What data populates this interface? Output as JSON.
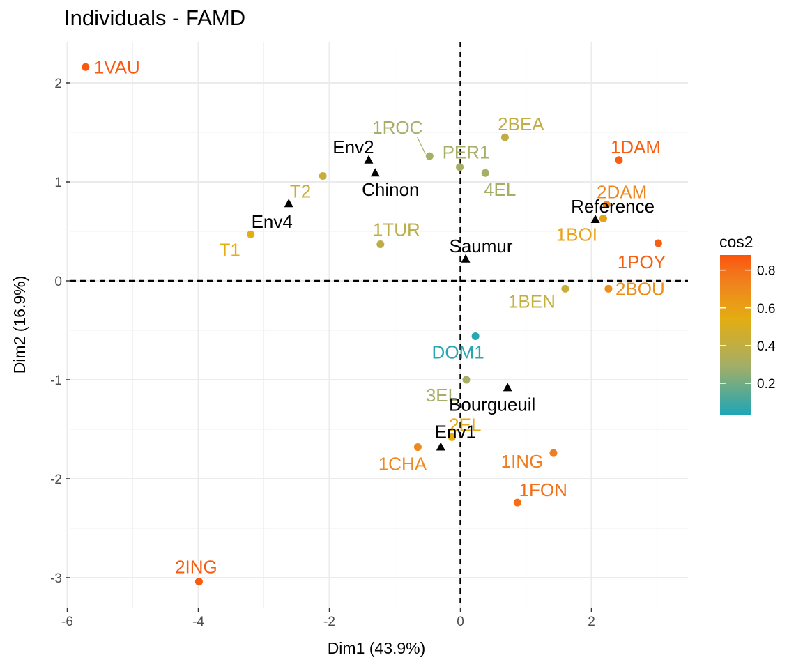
{
  "chart_data": {
    "type": "scatter",
    "title": "Individuals - FAMD",
    "xlabel": "Dim1 (43.9%)",
    "ylabel": "Dim2 (16.9%)",
    "xlim": [
      -6.2,
      3.5
    ],
    "ylim": [
      -3.3,
      2.4
    ],
    "xticks": [
      -6,
      -4,
      -2,
      0,
      2
    ],
    "yticks": [
      -3,
      -2,
      -1,
      0,
      1,
      2
    ],
    "grid": true,
    "reference_lines": {
      "x": 0,
      "y": 0,
      "style": "dashed"
    },
    "color_variable": "cos2",
    "color_scale": {
      "stops": [
        {
          "value": 0.0,
          "color": "#0ea5c0"
        },
        {
          "value": 0.3,
          "color": "#a7ae65"
        },
        {
          "value": 0.55,
          "color": "#e6ad10"
        },
        {
          "value": 0.75,
          "color": "#f07e20"
        },
        {
          "value": 0.9,
          "color": "#fc4e07"
        }
      ],
      "legend_ticks": [
        0.2,
        0.4,
        0.6,
        0.8
      ],
      "legend_range": [
        0.03,
        0.88
      ],
      "legend_position": "right"
    },
    "individuals": [
      {
        "label": "1VAU",
        "x": -5.72,
        "y": 2.16,
        "cos2": 0.87,
        "anchor": "start",
        "dx": 12,
        "dy": 9
      },
      {
        "label": "2ING",
        "x": -3.99,
        "y": -3.04,
        "cos2": 0.86,
        "anchor": "middle",
        "dx": -4,
        "dy": -12
      },
      {
        "label": "T1",
        "x": -3.2,
        "y": 0.47,
        "cos2": 0.55,
        "anchor": "middle",
        "dx": -30,
        "dy": 31
      },
      {
        "label": "T2",
        "x": -2.1,
        "y": 1.06,
        "cos2": 0.43,
        "anchor": "middle",
        "dx": -32,
        "dy": 31
      },
      {
        "label": "1TUR",
        "x": -1.22,
        "y": 0.37,
        "cos2": 0.38,
        "anchor": "middle",
        "dx": 23,
        "dy": -12
      },
      {
        "label": "1ROC",
        "x": -0.47,
        "y": 1.26,
        "cos2": 0.3,
        "anchor": "middle",
        "dx": -46,
        "dy": -32,
        "connector": true
      },
      {
        "label": "PER1",
        "x": -0.01,
        "y": 1.15,
        "cos2": 0.3,
        "anchor": "middle",
        "dx": 9,
        "dy": -12
      },
      {
        "label": "2BEA",
        "x": 0.68,
        "y": 1.45,
        "cos2": 0.4,
        "anchor": "middle",
        "dx": 23,
        "dy": -10
      },
      {
        "label": "4EL",
        "x": 0.38,
        "y": 1.09,
        "cos2": 0.3,
        "anchor": "middle",
        "dx": 21,
        "dy": 33
      },
      {
        "label": "1DAM",
        "x": 2.42,
        "y": 1.22,
        "cos2": 0.85,
        "anchor": "middle",
        "dx": 24,
        "dy": -10
      },
      {
        "label": "2DAM",
        "x": 2.23,
        "y": 0.77,
        "cos2": 0.72,
        "anchor": "middle",
        "dx": 22,
        "dy": -9
      },
      {
        "label": "1BOI",
        "x": 2.18,
        "y": 0.63,
        "cos2": 0.6,
        "anchor": "middle",
        "dx": -38,
        "dy": 32
      },
      {
        "label": "1POY",
        "x": 3.02,
        "y": 0.38,
        "cos2": 0.85,
        "anchor": "middle",
        "dx": -24,
        "dy": 36
      },
      {
        "label": "1BEN",
        "x": 1.6,
        "y": -0.08,
        "cos2": 0.42,
        "anchor": "middle",
        "dx": -48,
        "dy": 27
      },
      {
        "label": "2BOU",
        "x": 2.26,
        "y": -0.08,
        "cos2": 0.68,
        "anchor": "start",
        "dx": 10,
        "dy": 9
      },
      {
        "label": "DOM1",
        "x": 0.23,
        "y": -0.56,
        "cos2": 0.05,
        "anchor": "middle",
        "dx": -25,
        "dy": 32
      },
      {
        "label": "3EL",
        "x": 0.09,
        "y": -1.0,
        "cos2": 0.3,
        "anchor": "middle",
        "dx": -35,
        "dy": 31
      },
      {
        "label": "2EL",
        "x": -0.13,
        "y": -1.58,
        "cos2": 0.55,
        "anchor": "middle",
        "dx": 19,
        "dy": -9
      },
      {
        "label": "1CHA",
        "x": -0.65,
        "y": -1.68,
        "cos2": 0.7,
        "anchor": "middle",
        "dx": -22,
        "dy": 33
      },
      {
        "label": "1ING",
        "x": 1.42,
        "y": -1.74,
        "cos2": 0.75,
        "anchor": "middle",
        "dx": -45,
        "dy": 21
      },
      {
        "label": "1FON",
        "x": 0.87,
        "y": -2.24,
        "cos2": 0.8,
        "anchor": "middle",
        "dx": 37,
        "dy": -9
      }
    ],
    "supplementary": [
      {
        "label": "Env2",
        "x": -1.4,
        "y": 1.22,
        "anchor": "middle",
        "dx": -22,
        "dy": -10
      },
      {
        "label": "Chinon",
        "x": -1.3,
        "y": 1.09,
        "anchor": "middle",
        "dx": 22,
        "dy": 33
      },
      {
        "label": "Env4",
        "x": -2.62,
        "y": 0.78,
        "anchor": "middle",
        "dx": -24,
        "dy": 35
      },
      {
        "label": "Saumur",
        "x": 0.08,
        "y": 0.22,
        "anchor": "middle",
        "dx": 22,
        "dy": -10
      },
      {
        "label": "Reference",
        "x": 2.06,
        "y": 0.62,
        "anchor": "middle",
        "dx": 25,
        "dy": -10
      },
      {
        "label": "Bourgueuil",
        "x": 0.72,
        "y": -1.08,
        "anchor": "middle",
        "dx": -22,
        "dy": 33
      },
      {
        "label": "Env1",
        "x": -0.3,
        "y": -1.68,
        "anchor": "middle",
        "dx": 21,
        "dy": -13
      }
    ]
  }
}
